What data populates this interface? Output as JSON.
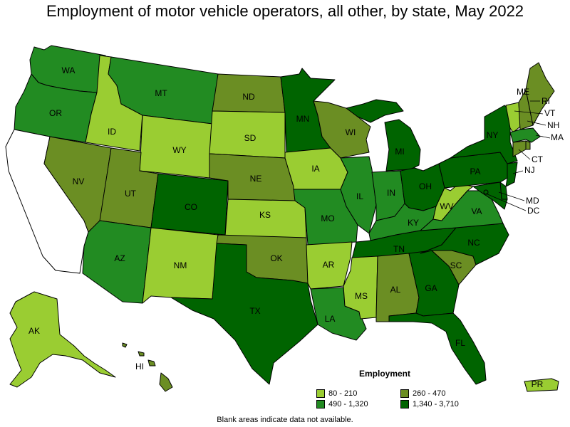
{
  "title": "Employment of motor vehicle operators, all other, by state, May 2022",
  "legend": {
    "title": "Employment",
    "items": [
      {
        "label": "80 - 210",
        "color": "#9acd32"
      },
      {
        "label": "260 - 470",
        "color": "#6b8e23"
      },
      {
        "label": "490 - 1,320",
        "color": "#228b22"
      },
      {
        "label": "1,340 - 3,710",
        "color": "#006400"
      }
    ]
  },
  "footnote": "Blank areas indicate data not available.",
  "colors": {
    "c1": "#9acd32",
    "c2": "#6b8e23",
    "c3": "#228b22",
    "c4": "#006400",
    "na": "#ffffff"
  },
  "states": {
    "WA": {
      "label": "WA",
      "class": "c3"
    },
    "OR": {
      "label": "OR",
      "class": "c3"
    },
    "CA": {
      "label": "",
      "class": "na"
    },
    "ID": {
      "label": "ID",
      "class": "c1"
    },
    "NV": {
      "label": "NV",
      "class": "c2"
    },
    "MT": {
      "label": "MT",
      "class": "c3"
    },
    "WY": {
      "label": "WY",
      "class": "c1"
    },
    "UT": {
      "label": "UT",
      "class": "c2"
    },
    "AZ": {
      "label": "AZ",
      "class": "c3"
    },
    "CO": {
      "label": "CO",
      "class": "c4"
    },
    "NM": {
      "label": "NM",
      "class": "c1"
    },
    "ND": {
      "label": "ND",
      "class": "c2"
    },
    "SD": {
      "label": "SD",
      "class": "c1"
    },
    "NE": {
      "label": "NE",
      "class": "c2"
    },
    "KS": {
      "label": "KS",
      "class": "c1"
    },
    "OK": {
      "label": "OK",
      "class": "c2"
    },
    "TX": {
      "label": "TX",
      "class": "c4"
    },
    "MN": {
      "label": "MN",
      "class": "c4"
    },
    "IA": {
      "label": "IA",
      "class": "c1"
    },
    "MO": {
      "label": "MO",
      "class": "c3"
    },
    "AR": {
      "label": "AR",
      "class": "c1"
    },
    "LA": {
      "label": "LA",
      "class": "c3"
    },
    "WI": {
      "label": "WI",
      "class": "c2"
    },
    "IL": {
      "label": "IL",
      "class": "c3"
    },
    "MI": {
      "label": "MI",
      "class": "c4"
    },
    "IN": {
      "label": "IN",
      "class": "c3"
    },
    "OH": {
      "label": "OH",
      "class": "c4"
    },
    "KY": {
      "label": "KY",
      "class": "c3"
    },
    "TN": {
      "label": "TN",
      "class": "c4"
    },
    "MS": {
      "label": "MS",
      "class": "c1"
    },
    "AL": {
      "label": "AL",
      "class": "c2"
    },
    "GA": {
      "label": "GA",
      "class": "c4"
    },
    "FL": {
      "label": "FL",
      "class": "c4"
    },
    "SC": {
      "label": "SC",
      "class": "c2"
    },
    "NC": {
      "label": "NC",
      "class": "c4"
    },
    "VA": {
      "label": "VA",
      "class": "c3"
    },
    "WV": {
      "label": "WV",
      "class": "c1"
    },
    "PA": {
      "label": "PA",
      "class": "c4"
    },
    "NY": {
      "label": "NY",
      "class": "c4"
    },
    "VT": {
      "label": "VT",
      "class": "c1"
    },
    "NH": {
      "label": "NH",
      "class": "c2"
    },
    "ME": {
      "label": "ME",
      "class": "c2"
    },
    "MA": {
      "label": "MA",
      "class": "c3"
    },
    "RI": {
      "label": "RI",
      "class": "c2"
    },
    "CT": {
      "label": "CT",
      "class": "c2"
    },
    "NJ": {
      "label": "NJ",
      "class": "c4"
    },
    "DE": {
      "label": "",
      "class": "c4"
    },
    "MD": {
      "label": "MD",
      "class": "c4"
    },
    "DC": {
      "label": "DC",
      "class": "c4"
    },
    "AK": {
      "label": "AK",
      "class": "c1"
    },
    "HI": {
      "label": "HI",
      "class": "c2"
    },
    "PR": {
      "label": "PR",
      "class": "c1"
    }
  }
}
